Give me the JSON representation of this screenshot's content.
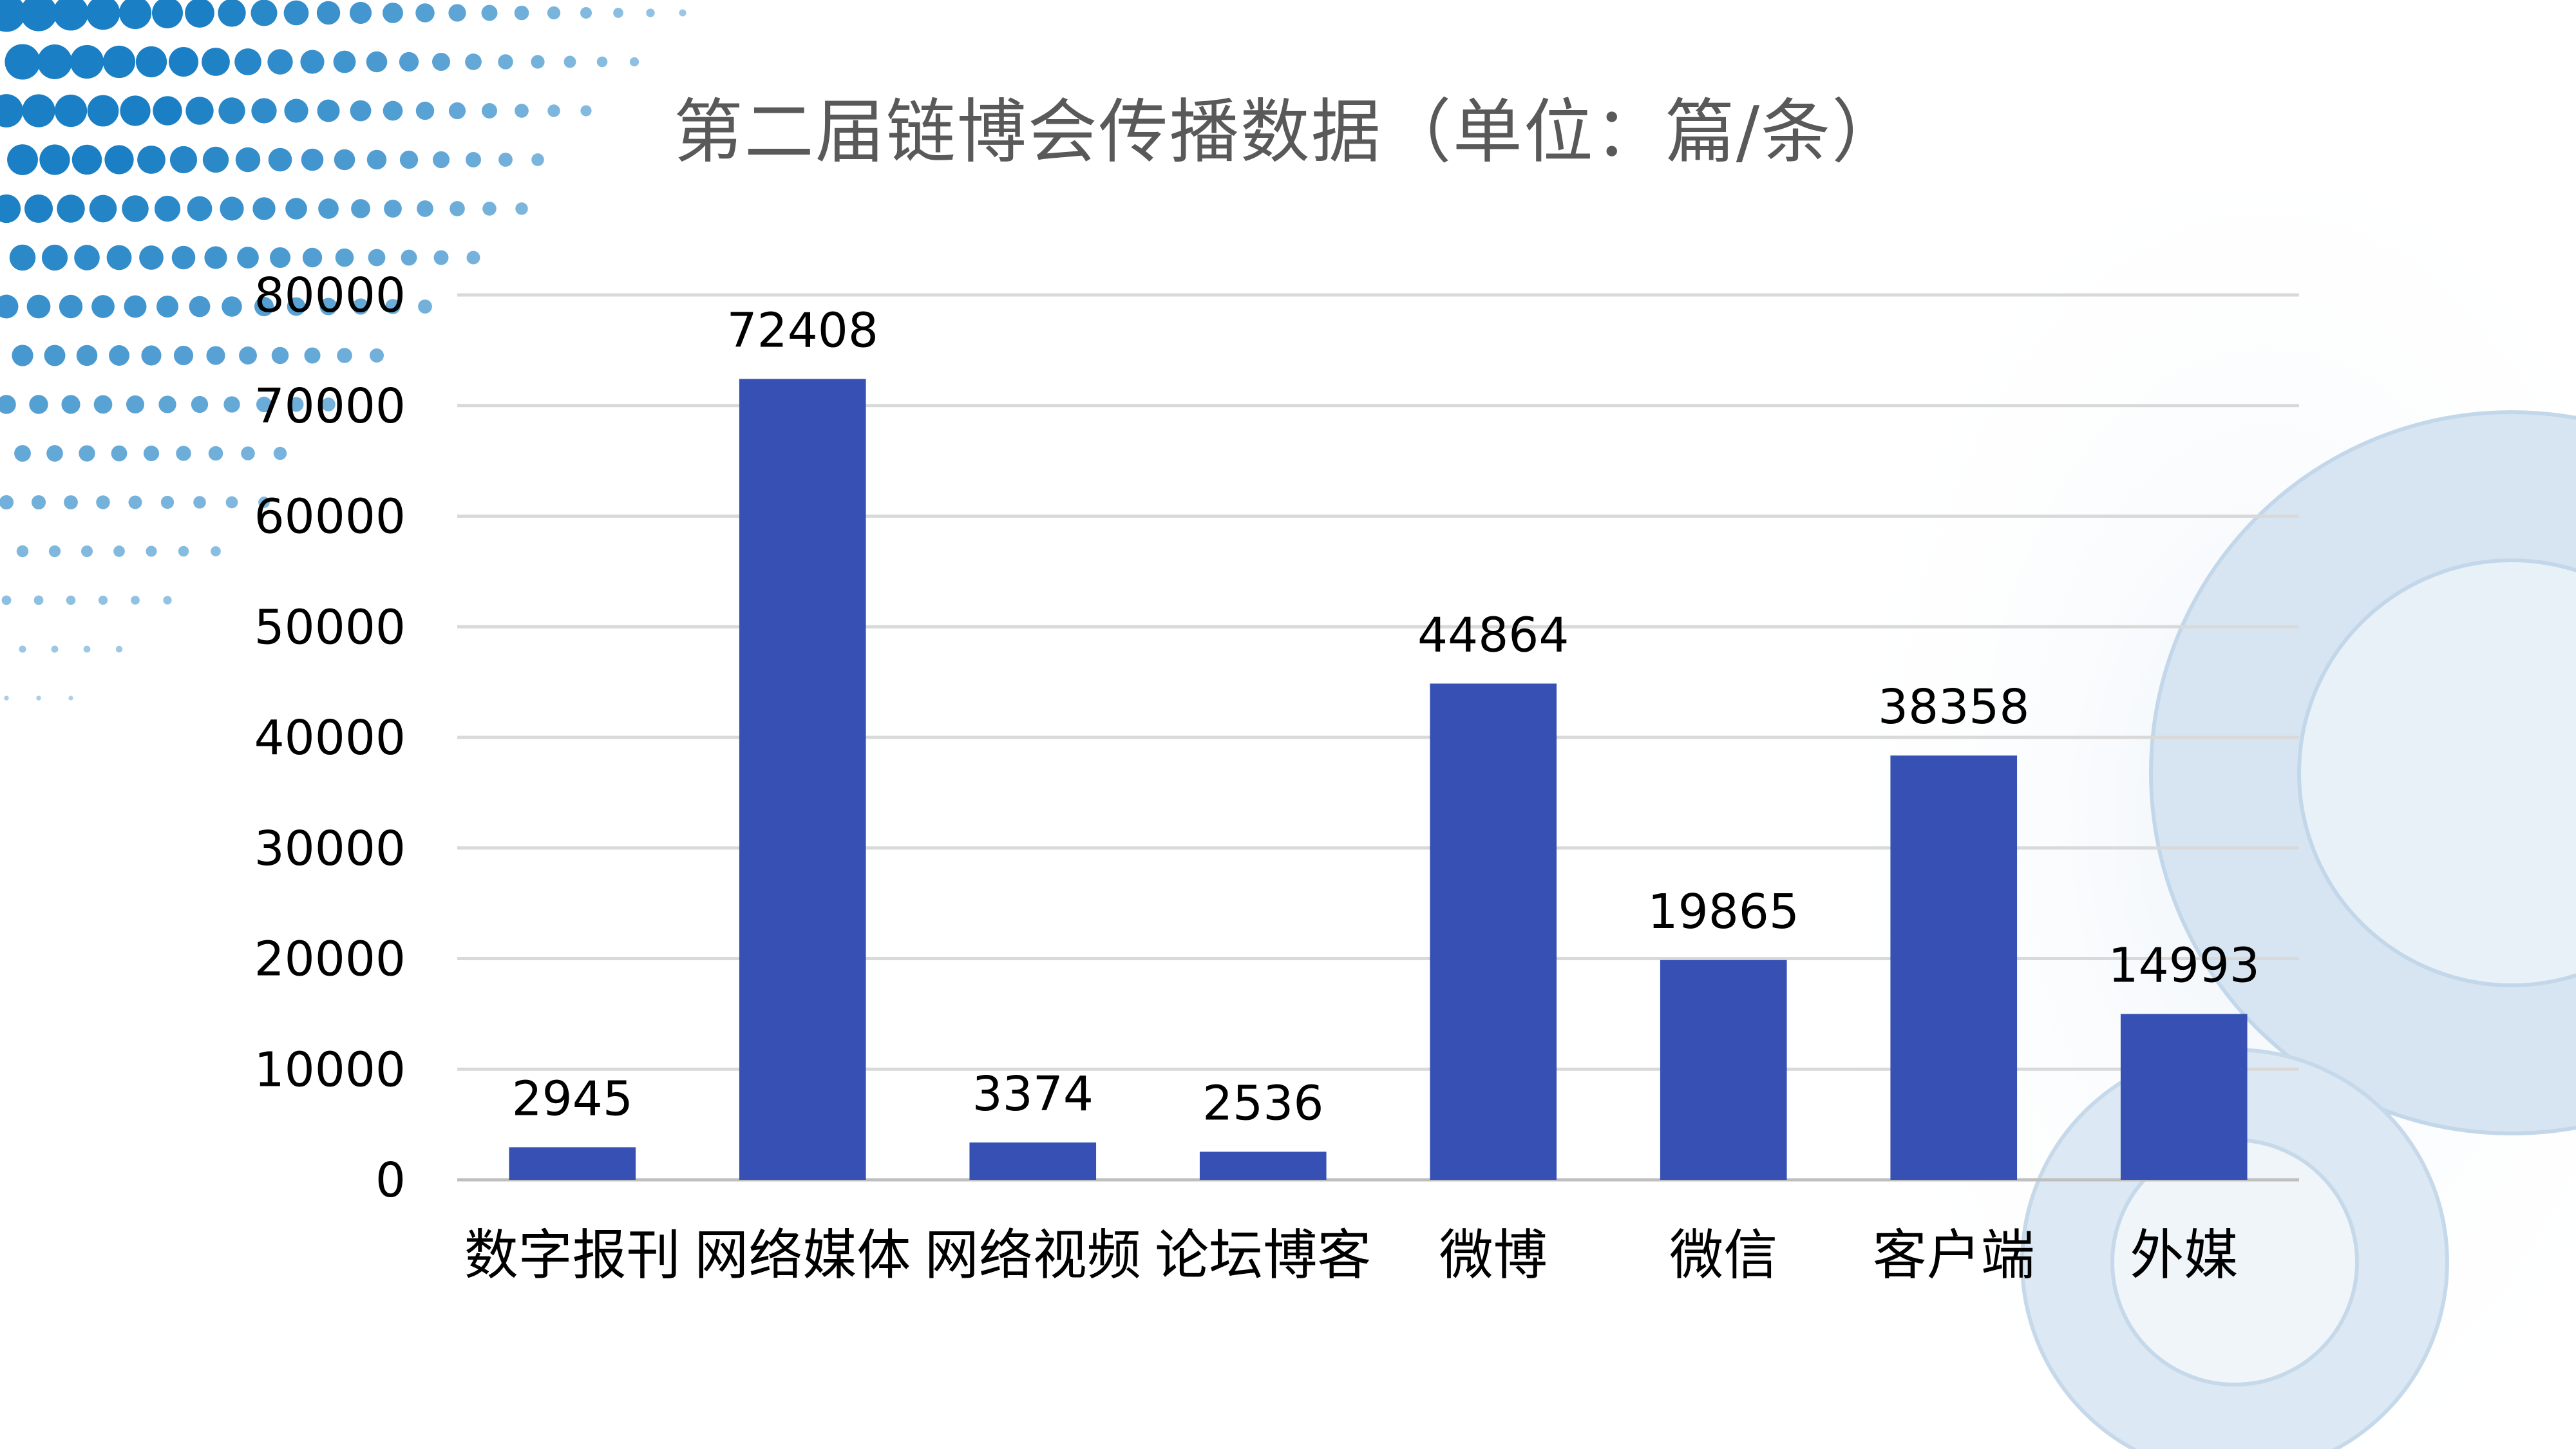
{
  "title": "第二届链博会传播数据（单位：篇/条）",
  "colors": {
    "bar": "#3651B3",
    "grid": "#D9D9D9",
    "axis": "#BFBFBF",
    "dots": "#1A7FC4",
    "gear": "#C9DDEE"
  },
  "chart_data": {
    "type": "bar",
    "title": "第二届链博会传播数据（单位：篇/条）",
    "categories": [
      "数字报刊",
      "网络媒体",
      "网络视频",
      "论坛博客",
      "微博",
      "微信",
      "客户端",
      "外媒"
    ],
    "values": [
      2945,
      72408,
      3374,
      2536,
      44864,
      19865,
      38358,
      14993
    ],
    "data_labels": [
      "2945",
      "72408",
      "3374",
      "2536",
      "44864",
      "19865",
      "38358",
      "14993"
    ],
    "y_ticks": [
      "0",
      "10000",
      "20000",
      "30000",
      "40000",
      "50000",
      "60000",
      "70000",
      "80000"
    ],
    "ylim": [
      0,
      80000
    ],
    "xlabel": "",
    "ylabel": "",
    "grid": true,
    "legend": "none"
  }
}
